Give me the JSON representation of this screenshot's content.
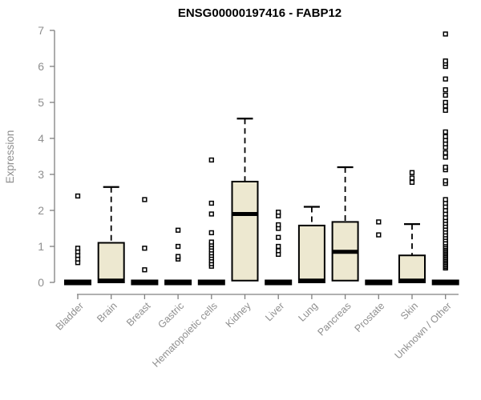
{
  "chart_data": {
    "type": "boxplot",
    "title": "ENSG00000197416 - FABP12",
    "ylabel": "Expression",
    "xlabel": "",
    "ylim": [
      0,
      7
    ],
    "yticks": [
      0,
      1,
      2,
      3,
      4,
      5,
      6,
      7
    ],
    "grid": false,
    "legend": null,
    "colors": {
      "background": "#ffffff",
      "box_fill": "#EDE8D0",
      "box_stroke": "#000000",
      "median": "#000000",
      "whisker": "#000000",
      "axis_line": "#808080",
      "tick_text": "#8f8f8f",
      "title_text": "#000000"
    },
    "categories": [
      "Bladder",
      "Brain",
      "Breast",
      "Gastric",
      "Hematopoietic cells",
      "Kidney",
      "Liver",
      "Lung",
      "Pancreas",
      "Prostate",
      "Skin",
      "Unknown / Other"
    ],
    "boxes": [
      {
        "label": "Bladder",
        "whisker_low": 0,
        "q1": 0,
        "median": 0,
        "q3": 0,
        "whisker_high": 0,
        "outliers": [
          0.55,
          0.65,
          0.75,
          0.85,
          0.95,
          2.4
        ]
      },
      {
        "label": "Brain",
        "whisker_low": 0,
        "q1": 0,
        "median": 0.05,
        "q3": 1.1,
        "whisker_high": 2.65,
        "outliers": []
      },
      {
        "label": "Breast",
        "whisker_low": 0,
        "q1": 0,
        "median": 0,
        "q3": 0,
        "whisker_high": 0,
        "outliers": [
          0.35,
          0.95,
          2.3
        ]
      },
      {
        "label": "Gastric",
        "whisker_low": 0,
        "q1": 0,
        "median": 0,
        "q3": 0,
        "whisker_high": 0,
        "outliers": [
          0.65,
          0.72,
          1.0,
          1.45
        ]
      },
      {
        "label": "Hematopoietic cells",
        "whisker_low": 0,
        "q1": 0,
        "median": 0,
        "q3": 0,
        "whisker_high": 0,
        "outliers": [
          0.45,
          0.52,
          0.6,
          0.68,
          0.75,
          0.82,
          0.9,
          0.98,
          1.05,
          1.12,
          1.38,
          1.9,
          2.2,
          3.4
        ]
      },
      {
        "label": "Kidney",
        "whisker_low": 0,
        "q1": 0.05,
        "median": 1.9,
        "q3": 2.8,
        "whisker_high": 4.55,
        "outliers": []
      },
      {
        "label": "Liver",
        "whisker_low": 0,
        "q1": 0,
        "median": 0,
        "q3": 0,
        "whisker_high": 0,
        "outliers": [
          0.78,
          0.88,
          1.0,
          1.25,
          1.5,
          1.6,
          1.85,
          1.95
        ]
      },
      {
        "label": "Lung",
        "whisker_low": 0,
        "q1": 0,
        "median": 0.05,
        "q3": 1.58,
        "whisker_high": 2.1,
        "outliers": []
      },
      {
        "label": "Pancreas",
        "whisker_low": 0,
        "q1": 0.05,
        "median": 0.85,
        "q3": 1.68,
        "whisker_high": 3.2,
        "outliers": []
      },
      {
        "label": "Prostate",
        "whisker_low": 0,
        "q1": 0,
        "median": 0,
        "q3": 0,
        "whisker_high": 0,
        "outliers": [
          1.32,
          1.68
        ]
      },
      {
        "label": "Skin",
        "whisker_low": 0,
        "q1": 0,
        "median": 0.05,
        "q3": 0.75,
        "whisker_high": 1.62,
        "outliers": [
          2.78,
          2.9,
          3.05
        ]
      },
      {
        "label": "Unknown / Other",
        "whisker_low": 0,
        "q1": 0,
        "median": 0,
        "q3": 0,
        "whisker_high": 0,
        "outliers": [
          0.4,
          0.44,
          0.48,
          0.52,
          0.56,
          0.6,
          0.64,
          0.68,
          0.72,
          0.76,
          0.8,
          0.84,
          0.88,
          0.92,
          0.96,
          1.0,
          1.05,
          1.1,
          1.18,
          1.25,
          1.32,
          1.4,
          1.48,
          1.56,
          1.64,
          1.72,
          1.8,
          1.9,
          2.0,
          2.1,
          2.2,
          2.3,
          2.75,
          2.82,
          3.13,
          3.2,
          3.48,
          3.6,
          3.75,
          3.85,
          3.95,
          4.05,
          4.18,
          4.78,
          4.9,
          5.0,
          5.2,
          5.35,
          5.65,
          6.0,
          6.08,
          6.15,
          6.9
        ]
      }
    ]
  }
}
